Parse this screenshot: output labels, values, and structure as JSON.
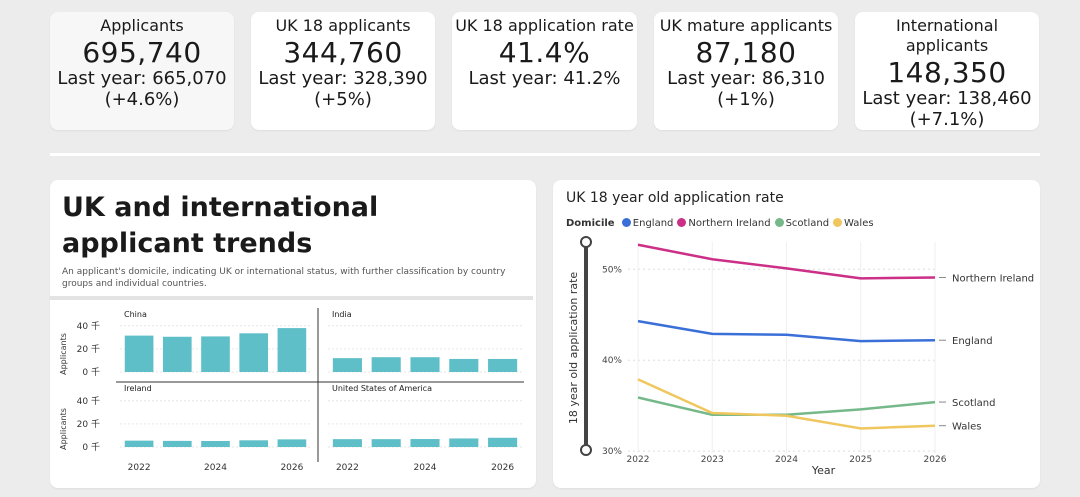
{
  "kpis": [
    {
      "title": "Applicants",
      "value": "695,740",
      "last": "Last year: 665,070",
      "change": "(+4.6%)"
    },
    {
      "title": "UK 18 applicants",
      "value": "344,760",
      "last": "Last year: 328,390",
      "change": "(+5%)"
    },
    {
      "title": "UK 18 application rate",
      "value": "41.4%",
      "last": "Last year: 41.2%",
      "change": ""
    },
    {
      "title": "UK mature applicants",
      "value": "87,180",
      "last": "Last year: 86,310",
      "change": "(+1%)"
    },
    {
      "title": "International applicants",
      "value": "148,350",
      "last": "Last year: 138,460",
      "change": "(+7.1%)"
    }
  ],
  "trends": {
    "title": "UK and international applicant trends",
    "description": "An applicant's domicile, indicating UK or international status, with further classification by country groups and individual countries."
  },
  "rate_chart": {
    "title": "UK 18 year old application rate",
    "legend_title": "Domicile"
  },
  "chart_data": [
    {
      "type": "bar",
      "facets": [
        "China",
        "India",
        "Ireland",
        "United States of America"
      ],
      "categories": [
        2022,
        2023,
        2024,
        2025,
        2026
      ],
      "x_tick_labels": [
        "2022",
        "2024",
        "2026"
      ],
      "ylabel": "Applicants",
      "y_tick_labels": [
        "0 千",
        "20 千",
        "40 千"
      ],
      "ylim": [
        0,
        45
      ],
      "series": [
        {
          "name": "China",
          "values": [
            31.5,
            30.5,
            30.8,
            33.5,
            38
          ]
        },
        {
          "name": "India",
          "values": [
            12,
            12.8,
            12.8,
            11.3,
            11.3
          ]
        },
        {
          "name": "Ireland",
          "values": [
            5.5,
            5.3,
            5.2,
            5.8,
            6.6
          ]
        },
        {
          "name": "United States of America",
          "values": [
            6.8,
            6.8,
            6.9,
            7.4,
            8
          ]
        }
      ],
      "color": "#5fbfc8"
    },
    {
      "type": "line",
      "x": [
        2022,
        2023,
        2024,
        2025,
        2026
      ],
      "xlabel": "Year",
      "ylabel": "18 year old application rate",
      "y_ticks": [
        "30%",
        "40%",
        "50%"
      ],
      "ylim": [
        29.8,
        53
      ],
      "series": [
        {
          "name": "England",
          "color": "#3a6fd8",
          "values": [
            44.3,
            42.9,
            42.8,
            42.1,
            42.2
          ]
        },
        {
          "name": "Northern Ireland",
          "color": "#cc2f86",
          "values": [
            52.7,
            51.1,
            50.1,
            49.0,
            49.1
          ]
        },
        {
          "name": "Scotland",
          "color": "#75b98a",
          "values": [
            35.9,
            34.0,
            34.0,
            34.6,
            35.4
          ]
        },
        {
          "name": "Wales",
          "color": "#f0c75e",
          "values": [
            37.9,
            34.2,
            33.9,
            32.5,
            32.8
          ]
        }
      ]
    }
  ]
}
